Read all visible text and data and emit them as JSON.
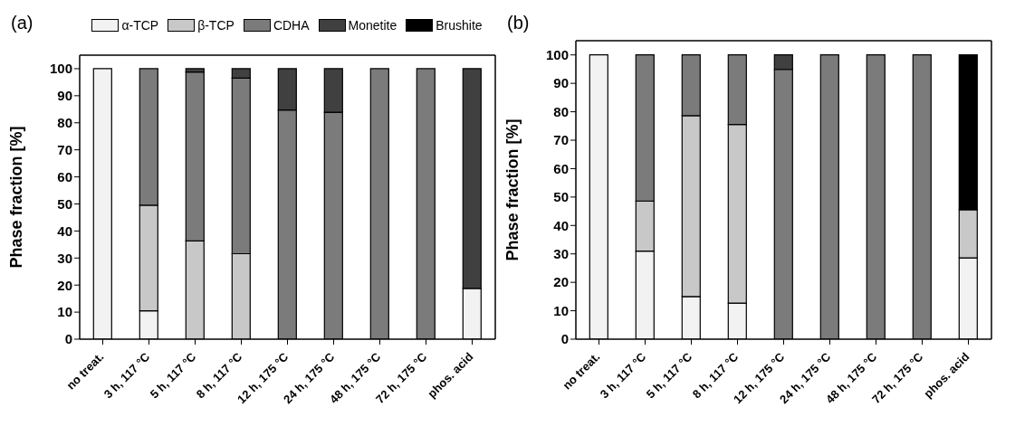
{
  "chart_data": [
    {
      "type": "bar",
      "title": "(a)",
      "ylabel": "Phase fraction [%]",
      "stacked": true,
      "legend": "top",
      "categories": [
        "no treat.",
        "3 h, 117 °C",
        "5 h, 117 °C",
        "8 h, 117 °C",
        "12 h, 175 °C",
        "24 h, 175 °C",
        "48 h, 175 °C",
        "72 h, 175 °C",
        "phos. acid"
      ],
      "ylim": [
        0,
        105
      ],
      "yticks": [
        0,
        10,
        20,
        30,
        40,
        50,
        60,
        70,
        80,
        90,
        100
      ],
      "series": [
        {
          "name": "α-TCP",
          "color": "#f2f2f2",
          "values": [
            100,
            10.5,
            null,
            null,
            null,
            null,
            null,
            null,
            18.8
          ]
        },
        {
          "name": "β-TCP",
          "color": "#c8c8c8",
          "values": [
            null,
            39,
            36.3,
            31.6,
            null,
            null,
            null,
            null,
            null
          ]
        },
        {
          "name": "CDHA",
          "color": "#7b7b7b",
          "values": [
            null,
            50.5,
            62.5,
            64.9,
            84.7,
            83.9,
            100,
            100,
            null
          ]
        },
        {
          "name": "Monetite",
          "color": "#404040",
          "values": [
            null,
            null,
            1.2,
            3.5,
            15.3,
            16.1,
            null,
            null,
            81.2
          ]
        },
        {
          "name": "Brushite",
          "color": "#000000",
          "values": [
            null,
            null,
            null,
            null,
            null,
            null,
            null,
            null,
            null
          ]
        }
      ]
    },
    {
      "type": "bar",
      "title": "(b)",
      "ylabel": "Phase fraction [%]",
      "stacked": true,
      "legend": false,
      "categories": [
        "no treat.",
        "3 h, 117 °C",
        "5 h, 117 °C",
        "8 h, 117 °C",
        "12 h, 175 °C",
        "24 h, 175 °C",
        "48 h, 175 °C",
        "72 h, 175 °C",
        "phos. acid"
      ],
      "ylim": [
        0,
        105
      ],
      "yticks": [
        0,
        10,
        20,
        30,
        40,
        50,
        60,
        70,
        80,
        90,
        100
      ],
      "series": [
        {
          "color": "#f2f2f2",
          "values": [
            100,
            31,
            15,
            12.7,
            null,
            null,
            null,
            null,
            28.6
          ]
        },
        {
          "color": "#c8c8c8",
          "values": [
            null,
            17.6,
            63.6,
            62.8,
            null,
            null,
            null,
            null,
            16.9
          ]
        },
        {
          "color": "#7b7b7b",
          "values": [
            null,
            51.4,
            21.4,
            24.5,
            94.9,
            100,
            100,
            100,
            null
          ]
        },
        {
          "color": "#404040",
          "values": [
            null,
            null,
            null,
            null,
            5.1,
            null,
            null,
            null,
            null
          ]
        },
        {
          "color": "#000000",
          "values": [
            null,
            null,
            null,
            null,
            null,
            null,
            null,
            null,
            54.5
          ]
        }
      ]
    }
  ]
}
